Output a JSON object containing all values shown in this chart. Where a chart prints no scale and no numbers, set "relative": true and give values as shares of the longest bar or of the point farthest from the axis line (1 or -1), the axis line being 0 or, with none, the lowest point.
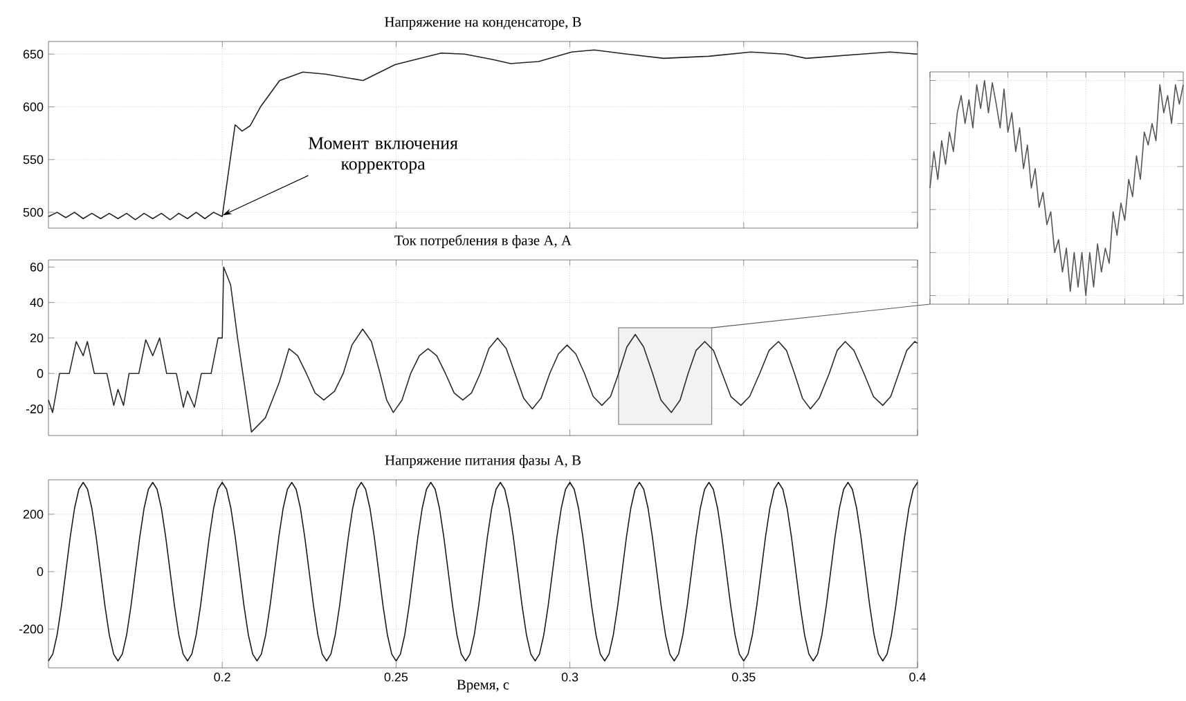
{
  "chart_data": [
    {
      "type": "line",
      "title": "Напряжение на конденсаторе, В",
      "xlim": [
        0.15,
        0.4
      ],
      "ylim": [
        485,
        662
      ],
      "xticks": [
        0.2,
        0.25,
        0.3,
        0.35,
        0.4
      ],
      "yticks": [
        500,
        550,
        600,
        650
      ],
      "grid": true,
      "tick_labels": "y",
      "x": [
        0.15,
        0.1525,
        0.155,
        0.1575,
        0.16,
        0.1625,
        0.165,
        0.1675,
        0.17,
        0.1725,
        0.175,
        0.1775,
        0.18,
        0.1825,
        0.185,
        0.1875,
        0.19,
        0.1925,
        0.195,
        0.1975,
        0.2,
        0.2037,
        0.2057,
        0.208,
        0.211,
        0.2165,
        0.2232,
        0.2297,
        0.2405,
        0.2497,
        0.263,
        0.2697,
        0.2777,
        0.283,
        0.291,
        0.3005,
        0.307,
        0.3164,
        0.327,
        0.34,
        0.352,
        0.362,
        0.368,
        0.384,
        0.392,
        0.4
      ],
      "series": [
        {
          "color": "#222222",
          "values": [
            496,
            500,
            495,
            500,
            494,
            499,
            494,
            499,
            494,
            499,
            493,
            499,
            494,
            499,
            493,
            499,
            494,
            500,
            494,
            500,
            496,
            583,
            577,
            582,
            600,
            625,
            633,
            631,
            625,
            640,
            651,
            650,
            645,
            641,
            643,
            652,
            654,
            650,
            646,
            648,
            652,
            650,
            646,
            650,
            652,
            650
          ]
        }
      ],
      "annotations": [
        {
          "text": "Момент включения корректора",
          "x": 0.2,
          "y": 497
        }
      ]
    },
    {
      "type": "line",
      "title": "Ток потребления в фазе А, А",
      "xlim": [
        0.15,
        0.4
      ],
      "ylim": [
        -35,
        64
      ],
      "xticks": [
        0.2,
        0.25,
        0.3,
        0.35,
        0.4
      ],
      "yticks": [
        -20,
        0,
        20,
        40,
        60
      ],
      "grid": true,
      "tick_labels": "y",
      "x": [
        0.15,
        0.1512,
        0.1532,
        0.156,
        0.158,
        0.16,
        0.1612,
        0.1632,
        0.1668,
        0.1688,
        0.17,
        0.1716,
        0.1732,
        0.176,
        0.178,
        0.18,
        0.182,
        0.184,
        0.1868,
        0.1888,
        0.19,
        0.192,
        0.194,
        0.1968,
        0.1988,
        0.2,
        0.2004,
        0.2024,
        0.2044,
        0.2084,
        0.2124,
        0.2164,
        0.2192,
        0.2217,
        0.2242,
        0.2267,
        0.2292,
        0.2323,
        0.2348,
        0.2373,
        0.2404,
        0.2429,
        0.2454,
        0.2473,
        0.2492,
        0.2517,
        0.2542,
        0.2567,
        0.2592,
        0.2617,
        0.2642,
        0.2667,
        0.2692,
        0.2717,
        0.2742,
        0.2767,
        0.2792,
        0.2817,
        0.2842,
        0.2867,
        0.2892,
        0.2917,
        0.2942,
        0.2967,
        0.2992,
        0.3017,
        0.3042,
        0.3067,
        0.3092,
        0.3117,
        0.314,
        0.3164,
        0.3188,
        0.3212,
        0.3238,
        0.3262,
        0.3292,
        0.3317,
        0.334,
        0.3363,
        0.3388,
        0.3413,
        0.3438,
        0.3463,
        0.3492,
        0.3517,
        0.3546,
        0.3573,
        0.36,
        0.3623,
        0.3646,
        0.3669,
        0.3692,
        0.3717,
        0.3746,
        0.3769,
        0.3792,
        0.3817,
        0.3846,
        0.3873,
        0.39,
        0.3923,
        0.3946,
        0.3969,
        0.3992,
        0.4
      ],
      "series": [
        {
          "color": "#2a2a2a",
          "values": [
            -15,
            -22,
            0,
            0,
            18,
            10,
            18,
            0,
            0,
            -18,
            -9,
            -18,
            0,
            0,
            19,
            10,
            20,
            0,
            0,
            -19,
            -10,
            -19,
            0,
            0,
            20,
            20,
            60,
            50,
            20,
            -33,
            -25,
            -5,
            14,
            10,
            0,
            -11,
            -15,
            -10,
            0,
            16,
            25,
            18,
            0,
            -15,
            -22,
            -15,
            0,
            10,
            14,
            10,
            0,
            -11,
            -15,
            -11,
            0,
            14,
            20,
            14,
            0,
            -14,
            -20,
            -14,
            0,
            11,
            16,
            11,
            0,
            -13,
            -18,
            -13,
            0,
            15,
            22,
            15,
            0,
            -15,
            -22,
            -15,
            0,
            13,
            18,
            13,
            0,
            -13,
            -18,
            -13,
            0,
            13,
            18,
            13,
            0,
            -14,
            -20,
            -14,
            0,
            13,
            18,
            13,
            0,
            -13,
            -18,
            -13,
            0,
            13,
            18,
            17
          ]
        }
      ],
      "bands": [
        {
          "axis": "x",
          "from": 0.314,
          "to": 0.3408,
          "color": "#808080"
        }
      ]
    },
    {
      "type": "line",
      "title": "Напряжение питания фазы А, В",
      "xlabel": "Время, с",
      "xlim": [
        0.15,
        0.4
      ],
      "ylim": [
        -335,
        320
      ],
      "xticks": [
        0.2,
        0.25,
        0.3,
        0.35,
        0.4
      ],
      "yticks": [
        -200,
        0,
        200
      ],
      "grid": true,
      "x": [
        0.15,
        0.15125,
        0.1525,
        0.15375,
        0.155,
        0.15625,
        0.1575,
        0.15875,
        0.16,
        0.16125,
        0.1625,
        0.16375,
        0.165,
        0.16625,
        0.1675,
        0.16875,
        0.17,
        0.17125,
        0.1725,
        0.17375,
        0.175,
        0.17625,
        0.1775,
        0.17875,
        0.18,
        0.18125,
        0.1825,
        0.18375,
        0.185,
        0.18625,
        0.1875,
        0.18875,
        0.19,
        0.19125,
        0.1925,
        0.19375,
        0.195,
        0.19625,
        0.1975,
        0.19875,
        0.2,
        0.20125,
        0.2025,
        0.20375,
        0.205,
        0.20625,
        0.2075,
        0.20875,
        0.21,
        0.21125,
        0.2125,
        0.21375,
        0.215,
        0.21625,
        0.2175,
        0.21875,
        0.22,
        0.22125,
        0.2225,
        0.22375,
        0.225,
        0.22625,
        0.2275,
        0.22875,
        0.23,
        0.23125,
        0.2325,
        0.23375,
        0.235,
        0.23625,
        0.2375,
        0.23875,
        0.24,
        0.24125,
        0.2425,
        0.24375,
        0.245,
        0.24625,
        0.2475,
        0.24875,
        0.25,
        0.25125,
        0.2525,
        0.25375,
        0.255,
        0.25625,
        0.2575,
        0.25875,
        0.26,
        0.26125,
        0.2625,
        0.26375,
        0.265,
        0.26625,
        0.2675,
        0.26875,
        0.27,
        0.27125,
        0.2725,
        0.27375,
        0.275,
        0.27625,
        0.2775,
        0.27875,
        0.28,
        0.28125,
        0.2825,
        0.28375,
        0.285,
        0.28625,
        0.2875,
        0.28875,
        0.29,
        0.29125,
        0.2925,
        0.29375,
        0.295,
        0.29625,
        0.2975,
        0.29875,
        0.3,
        0.30125,
        0.3025,
        0.30375,
        0.305,
        0.30625,
        0.3075,
        0.30875,
        0.31,
        0.31125,
        0.3125,
        0.31375,
        0.315,
        0.31625,
        0.3175,
        0.31875,
        0.32,
        0.32125,
        0.3225,
        0.32375,
        0.325,
        0.32625,
        0.3275,
        0.32875,
        0.33,
        0.33125,
        0.3325,
        0.33375,
        0.335,
        0.33625,
        0.3375,
        0.33875,
        0.34,
        0.34125,
        0.3425,
        0.34375,
        0.345,
        0.34625,
        0.3475,
        0.34875,
        0.35,
        0.35125,
        0.3525,
        0.35375,
        0.355,
        0.35625,
        0.3575,
        0.35875,
        0.36,
        0.36125,
        0.3625,
        0.36375,
        0.365,
        0.36625,
        0.3675,
        0.36875,
        0.37,
        0.37125,
        0.3725,
        0.37375,
        0.375,
        0.37625,
        0.3775,
        0.37875,
        0.38,
        0.38125,
        0.3825,
        0.38375,
        0.385,
        0.38625,
        0.3875,
        0.38875,
        0.39,
        0.39125,
        0.3925,
        0.39375,
        0.395,
        0.39625,
        0.3975,
        0.39875,
        0.4
      ],
      "series": [
        {
          "color": "#1a1a1a",
          "values": [
            -311,
            -287,
            -220,
            -119,
            0,
            119,
            220,
            287,
            311,
            287,
            220,
            119,
            0,
            -119,
            -220,
            -287,
            -311,
            -287,
            -220,
            -119,
            0,
            119,
            220,
            287,
            311,
            287,
            220,
            119,
            0,
            -119,
            -220,
            -287,
            -311,
            -287,
            -220,
            -119,
            0,
            119,
            220,
            287,
            311,
            287,
            220,
            119,
            0,
            -119,
            -220,
            -287,
            -311,
            -287,
            -220,
            -119,
            0,
            119,
            220,
            287,
            311,
            287,
            220,
            119,
            0,
            -119,
            -220,
            -287,
            -311,
            -287,
            -220,
            -119,
            0,
            119,
            220,
            287,
            311,
            287,
            220,
            119,
            0,
            -119,
            -220,
            -287,
            -311,
            -287,
            -220,
            -119,
            0,
            119,
            220,
            287,
            311,
            287,
            220,
            119,
            0,
            -119,
            -220,
            -287,
            -311,
            -287,
            -220,
            -119,
            0,
            119,
            220,
            287,
            311,
            287,
            220,
            119,
            0,
            -119,
            -220,
            -287,
            -311,
            -287,
            -220,
            -119,
            0,
            119,
            220,
            287,
            311,
            287,
            220,
            119,
            0,
            -119,
            -220,
            -287,
            -311,
            -287,
            -220,
            -119,
            0,
            119,
            220,
            287,
            311,
            287,
            220,
            119,
            0,
            -119,
            -220,
            -287,
            -311,
            -287,
            -220,
            -119,
            0,
            119,
            220,
            287,
            311,
            287,
            220,
            119,
            0,
            -119,
            -220,
            -287,
            -311,
            -287,
            -220,
            -119,
            0,
            119,
            220,
            287,
            311,
            287,
            220,
            119,
            0,
            -119,
            -220,
            -287,
            -311,
            -287,
            -220,
            -119,
            0,
            119,
            220,
            287,
            311,
            287,
            220,
            119,
            0,
            -119,
            -220,
            -287,
            -311,
            -287,
            -220,
            -119,
            0,
            119,
            220,
            287,
            311
          ]
        }
      ]
    },
    {
      "type": "line",
      "relative": true,
      "grid": true,
      "categories": [
        null,
        null,
        null,
        null,
        null,
        null,
        null,
        null,
        null,
        null,
        null,
        null,
        null,
        null,
        null,
        null,
        null,
        null,
        null,
        null,
        null,
        null,
        null,
        null,
        null,
        null,
        null,
        null,
        null,
        null,
        null,
        null,
        null,
        null,
        null,
        null,
        null,
        null,
        null,
        null,
        null,
        null,
        null,
        null,
        null,
        null,
        null,
        null,
        null,
        null,
        null,
        null,
        null,
        null,
        null,
        null,
        null,
        null,
        null,
        null,
        null,
        null,
        null,
        null,
        null,
        null
      ],
      "series": [
        {
          "color": "#555555",
          "values": [
            0.5,
            0.67,
            0.54,
            0.72,
            0.61,
            0.76,
            0.67,
            0.85,
            0.93,
            0.8,
            0.91,
            0.78,
            0.98,
            0.87,
            1.0,
            0.85,
            0.99,
            0.89,
            0.78,
            0.96,
            0.76,
            0.85,
            0.67,
            0.78,
            0.59,
            0.7,
            0.5,
            0.59,
            0.41,
            0.48,
            0.33,
            0.39,
            0.2,
            0.26,
            0.11,
            0.22,
            0.02,
            0.2,
            0.04,
            0.2,
            0,
            0.2,
            0.04,
            0.24,
            0.11,
            0.22,
            0.15,
            0.39,
            0.28,
            0.43,
            0.35,
            0.54,
            0.46,
            0.65,
            0.54,
            0.76,
            0.7,
            0.8,
            0.72,
            0.98,
            0.85,
            0.93,
            0.8,
            0.98,
            0.89,
            0.98
          ]
        }
      ]
    }
  ]
}
